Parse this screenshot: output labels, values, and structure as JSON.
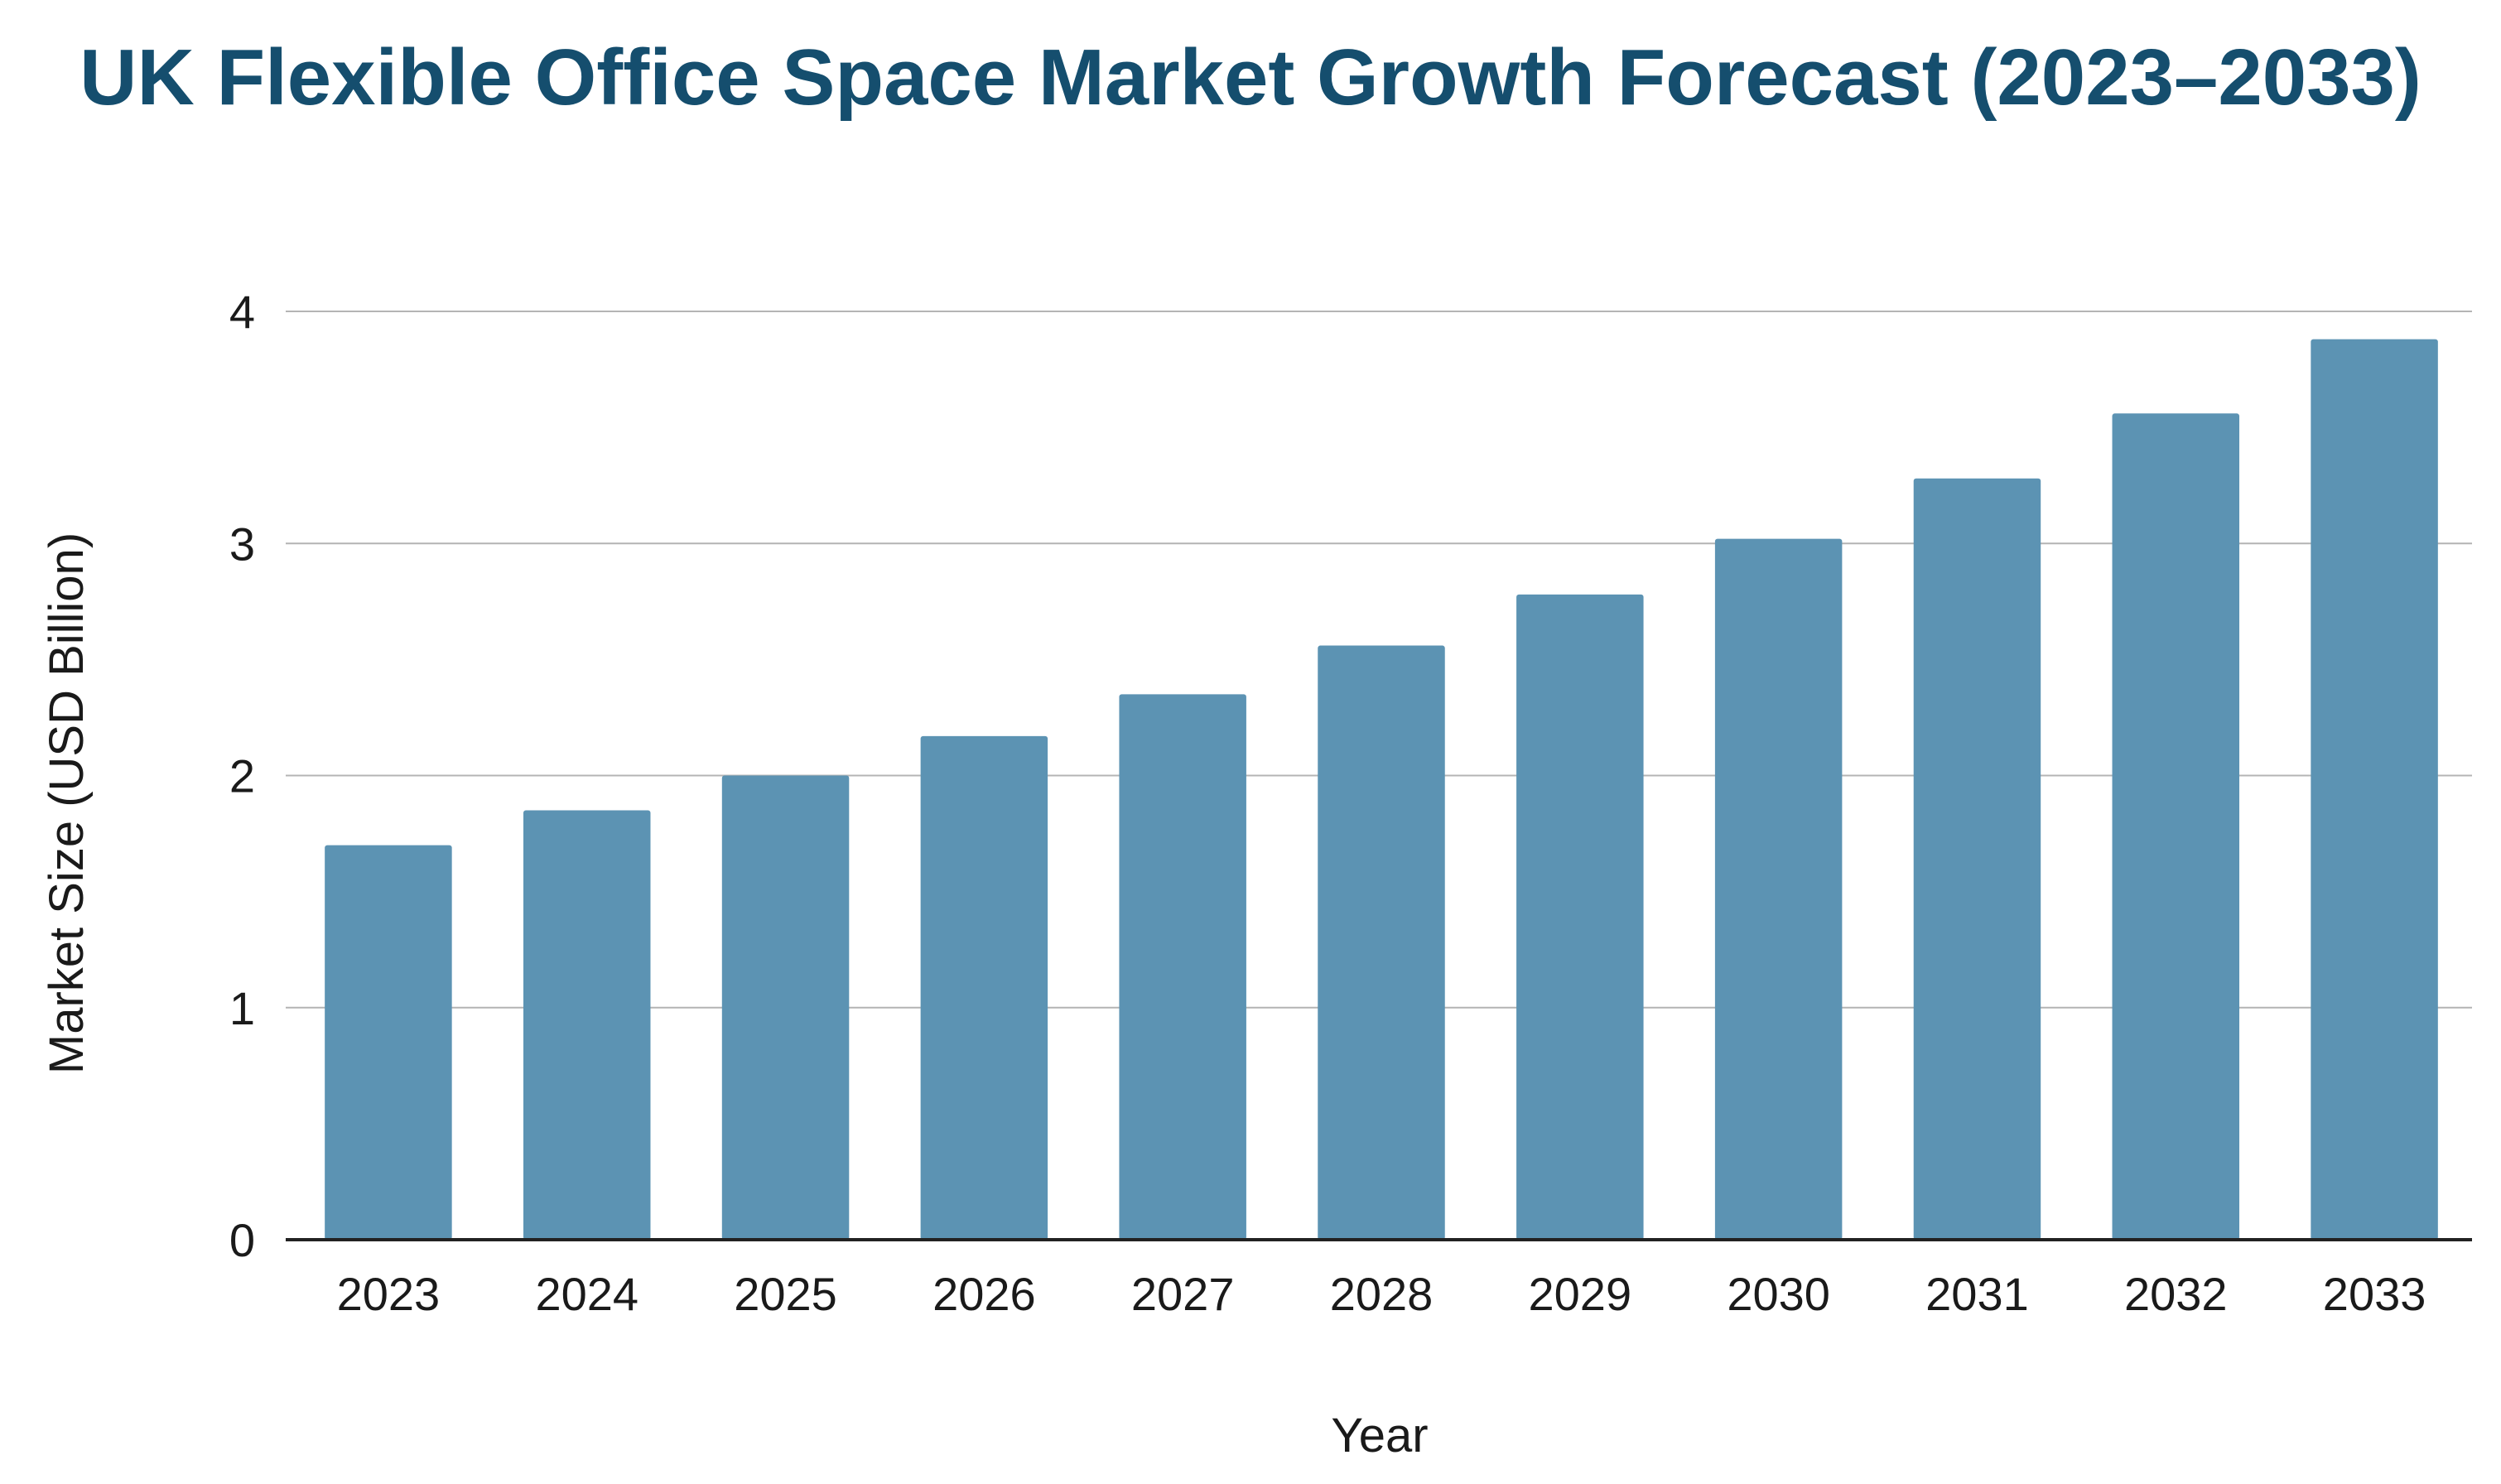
{
  "chart_data": {
    "type": "bar",
    "title": "UK Flexible Office Space Market Growth Forecast (2023–2033)",
    "xlabel": "Year",
    "ylabel": "Market Size (USD Billion)",
    "categories": [
      "2023",
      "2024",
      "2025",
      "2026",
      "2027",
      "2028",
      "2029",
      "2030",
      "2031",
      "2032",
      "2033"
    ],
    "values": [
      1.7,
      1.85,
      2.0,
      2.17,
      2.35,
      2.56,
      2.78,
      3.02,
      3.28,
      3.56,
      3.88
    ],
    "ylim": [
      0,
      4
    ],
    "yticks": [
      "0",
      "1",
      "2",
      "3",
      "4"
    ],
    "grid": true,
    "legend": "none",
    "colors": {
      "bar": "#5c93b3",
      "title": "#154e6e",
      "grid": "#b4b4b4",
      "axis": "#222222",
      "text": "#1a1a1a"
    }
  }
}
